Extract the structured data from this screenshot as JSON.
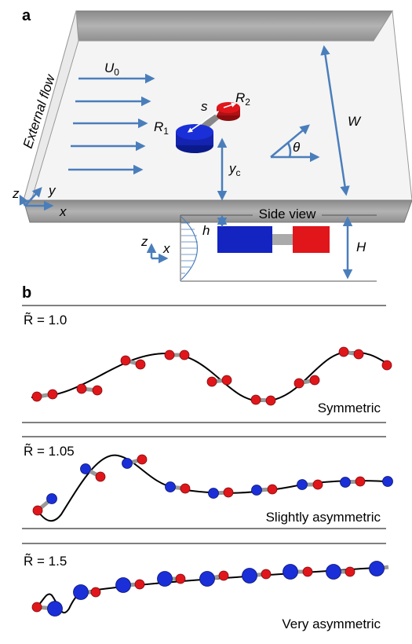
{
  "panel_a": {
    "label": "a",
    "flow_label": "External flow",
    "velocity": {
      "symbol": "U",
      "subscript": "0"
    },
    "radius_1": {
      "symbol": "R",
      "subscript": "1"
    },
    "radius_2": {
      "symbol": "R",
      "subscript": "2"
    },
    "spacing": "s",
    "width": "W",
    "angle": "θ",
    "offset": {
      "symbol": "y",
      "subscript": "c"
    },
    "axes": {
      "x": "x",
      "y": "y",
      "z": "z"
    },
    "side_view": {
      "title": "Side view",
      "height_small": "h",
      "height_large": "H",
      "axes": {
        "x": "x",
        "z": "z"
      }
    }
  },
  "panel_b": {
    "label": "b",
    "cases": [
      {
        "ratio_label": "R̃ = 1.0",
        "description": "Symmetric"
      },
      {
        "ratio_label": "R̃ = 1.05",
        "description": "Slightly asymmetric"
      },
      {
        "ratio_label": "R̃ = 1.5",
        "description": "Very asymmetric"
      }
    ]
  }
}
